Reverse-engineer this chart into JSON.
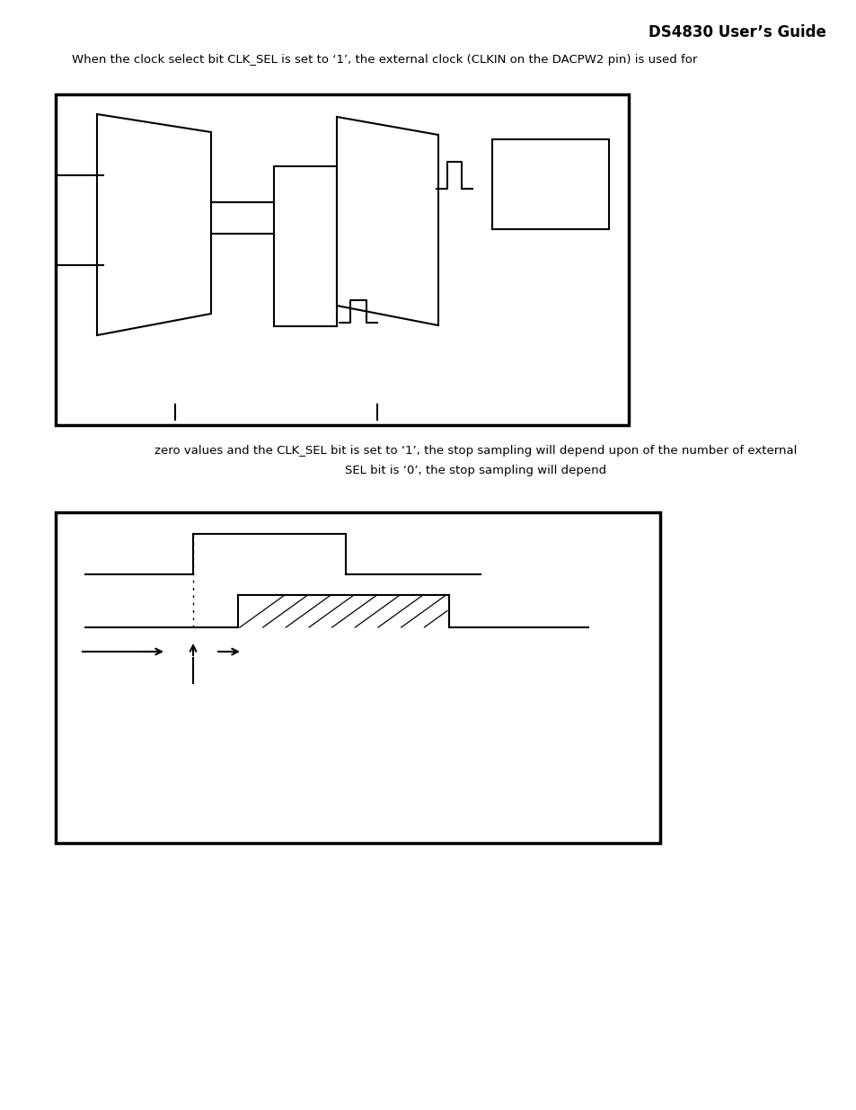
{
  "title": "DS4830 User’s Guide",
  "title_fontsize": 12,
  "header_text": "When the clock select bit CLK_SEL is set to ‘1’, the external clock (CLKIN on the DACPW2 pin) is used for",
  "body_text1": "zero values and the CLK_SEL bit is set to ‘1’, the stop sampling will depend upon of the number of external",
  "body_text2": "SEL bit is ‘0’, the stop sampling will depend",
  "bg_color": "#ffffff",
  "line_color": "#000000"
}
